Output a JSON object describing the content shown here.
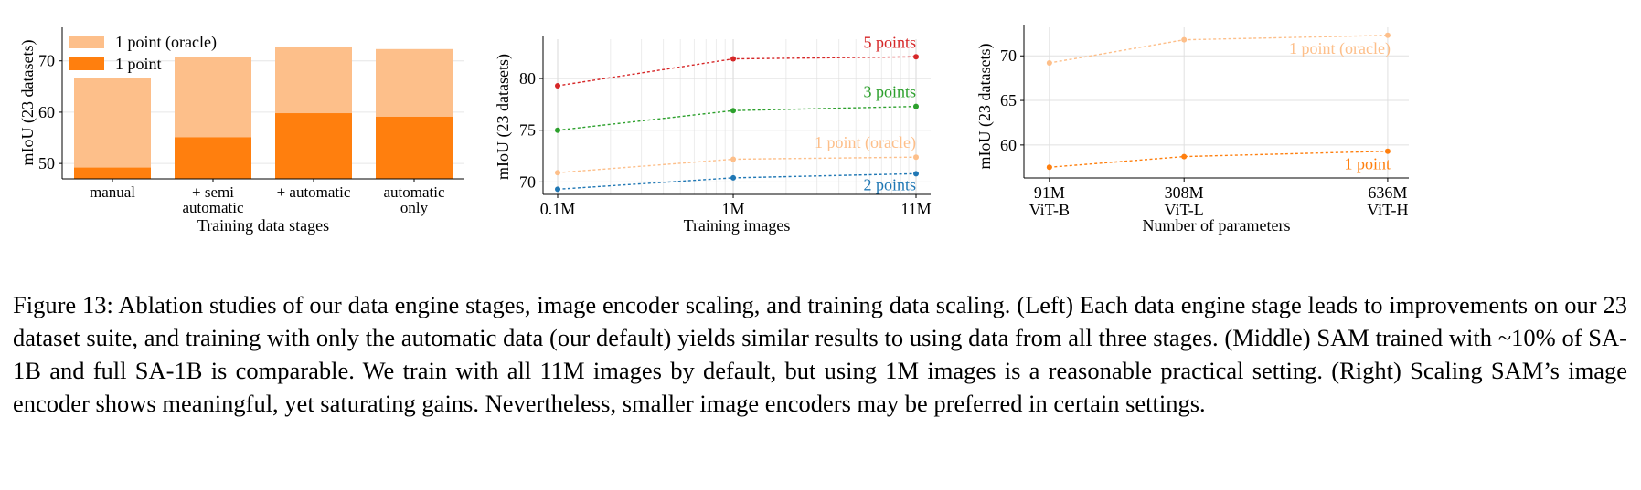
{
  "chart_data": [
    {
      "type": "bar",
      "stacked_overlay": true,
      "categories": [
        "manual",
        "+ semi\nautomatic",
        "+ automatic",
        "automatic\nonly"
      ],
      "series": [
        {
          "name": "1 point (oracle)",
          "values": [
            66.6,
            70.8,
            72.8,
            72.3
          ],
          "color": "#fdbf8a"
        },
        {
          "name": "1 point",
          "values": [
            49.2,
            55.1,
            59.8,
            59.1
          ],
          "color": "#ff7f0e"
        }
      ],
      "xlabel": "Training data stages",
      "ylabel": "mIoU (23 datasets)",
      "ylim": [
        47,
        76
      ],
      "yticks": [
        50,
        60,
        70
      ],
      "legend": "top-left",
      "grid": true
    },
    {
      "type": "line",
      "x": [
        "0.1M",
        "1M",
        "11M"
      ],
      "x_scale": "log",
      "series": [
        {
          "name": "5 points",
          "values": [
            79.3,
            81.9,
            82.1
          ],
          "color": "#d62728"
        },
        {
          "name": "3 points",
          "values": [
            75.0,
            76.9,
            77.3
          ],
          "color": "#2ca02c"
        },
        {
          "name": "1 point (oracle)",
          "values": [
            70.9,
            72.2,
            72.4
          ],
          "color": "#fdbf8a"
        },
        {
          "name": "2 points",
          "values": [
            69.3,
            70.4,
            70.8
          ],
          "color": "#1f77b4"
        }
      ],
      "xlabel": "Training images",
      "ylabel": "mIoU (23 datasets)",
      "ylim": [
        68.8,
        83.8
      ],
      "yticks": [
        70,
        75,
        80
      ],
      "grid": true,
      "legend": "inline-labels-right"
    },
    {
      "type": "line",
      "x": [
        91,
        308,
        636
      ],
      "x_ticklabels": [
        "91M\nViT-B",
        "308M\nViT-L",
        "636M\nViT-H"
      ],
      "series": [
        {
          "name": "1 point (oracle)",
          "values": [
            69.2,
            71.8,
            72.3
          ],
          "color": "#fdbf8a"
        },
        {
          "name": "1 point",
          "values": [
            57.5,
            58.7,
            59.3
          ],
          "color": "#ff7f0e"
        }
      ],
      "xlabel": "Number of parameters",
      "ylabel": "mIoU (23 datasets)",
      "ylim": [
        56.3,
        73.2
      ],
      "yticks": [
        60,
        65,
        70
      ],
      "grid": true,
      "legend": "inline-labels-right"
    }
  ],
  "caption": "Figure 13: Ablation studies of our data engine stages, image encoder scaling, and training data scaling. (Left) Each data engine stage leads to improvements on our 23 dataset suite, and training with only the automatic data (our default) yields similar results to using data from all three stages. (Middle) SAM trained with ~10% of SA-1B and full SA-1B is comparable. We train with all 11M images by default, but using 1M images is a reasonable practical setting. (Right) Scaling SAM’s image encoder shows meaningful, yet saturating gains. Nevertheless, smaller image encoders may be preferred in certain settings."
}
